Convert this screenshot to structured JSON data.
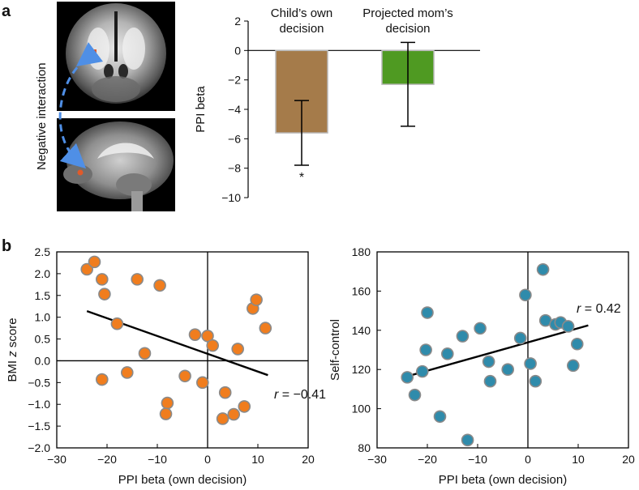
{
  "panels": {
    "a": "a",
    "b": "b"
  },
  "brain": {
    "arrow_label": "Negative interaction",
    "arrow_color": "#4f8fe6",
    "roi_color": "#e05a2a"
  },
  "chart_data": [
    {
      "id": "bar",
      "type": "bar",
      "categories": [
        "Child’s own decision",
        "Projected mom’s decision"
      ],
      "category_lines": [
        [
          "Child’s own",
          "decision"
        ],
        [
          "Projected mom’s",
          "decision"
        ]
      ],
      "values": [
        -5.6,
        -2.3
      ],
      "errors": [
        2.2,
        2.85
      ],
      "colors": [
        "#a57b4a",
        "#4f9a22"
      ],
      "significance": [
        "*",
        ""
      ],
      "ylabel": "PPI beta",
      "xlabel": "",
      "ylim": [
        -10,
        2
      ],
      "yticks": [
        2,
        0,
        -2,
        -4,
        -6,
        -8,
        -10
      ],
      "ytick_labels": [
        "2",
        "0",
        "−2",
        "−4",
        "−6",
        "−8",
        "−10"
      ]
    },
    {
      "id": "bmi",
      "type": "scatter",
      "xlabel": "PPI beta (own decision)",
      "ylabel_parts": [
        "BMI ",
        "z",
        " score"
      ],
      "xlim": [
        -30,
        20
      ],
      "ylim": [
        -2,
        2.5
      ],
      "xticks": [
        -30,
        -20,
        -10,
        0,
        10,
        20
      ],
      "xtick_labels": [
        "−30",
        "−20",
        "−10",
        "0",
        "10",
        "20"
      ],
      "yticks": [
        2.5,
        2.0,
        1.5,
        1.0,
        0.5,
        0.0,
        -0.5,
        -1.0,
        -1.5,
        -2.0
      ],
      "ytick_labels": [
        "2.5",
        "2.0",
        "1.5",
        "1.0",
        "0.5",
        "0.0",
        "−0.5",
        "−1.0",
        "−1.5",
        "−2.0"
      ],
      "point_color": "#f07d1e",
      "point_edge": "#8a8a8a",
      "points": [
        [
          -24,
          2.1
        ],
        [
          -22.5,
          2.27
        ],
        [
          -21,
          1.87
        ],
        [
          -20.5,
          1.53
        ],
        [
          -18,
          0.85
        ],
        [
          -14,
          1.87
        ],
        [
          -9.5,
          1.73
        ],
        [
          -12.5,
          0.17
        ],
        [
          -21,
          -0.43
        ],
        [
          -16,
          -0.27
        ],
        [
          -8,
          -0.97
        ],
        [
          -8.3,
          -1.22
        ],
        [
          -4.5,
          -0.35
        ],
        [
          -2.5,
          0.6
        ],
        [
          0,
          0.57
        ],
        [
          1,
          0.35
        ],
        [
          -1,
          -0.5
        ],
        [
          6,
          0.27
        ],
        [
          9,
          1.2
        ],
        [
          9.7,
          1.4
        ],
        [
          11.5,
          0.75
        ],
        [
          3.5,
          -0.73
        ],
        [
          3,
          -1.33
        ],
        [
          5.2,
          -1.23
        ],
        [
          7.3,
          -1.05
        ]
      ],
      "fit_line": [
        [
          -24,
          1.14
        ],
        [
          12,
          -0.33
        ]
      ],
      "annotation": {
        "r_text": "r",
        "value_text": " = −0.41"
      }
    },
    {
      "id": "self",
      "type": "scatter",
      "xlabel": "PPI beta (own decision)",
      "ylabel": "Self-control",
      "xlim": [
        -30,
        20
      ],
      "ylim": [
        80,
        180
      ],
      "xticks": [
        -30,
        -20,
        -10,
        0,
        10,
        20
      ],
      "xtick_labels": [
        "−30",
        "−20",
        "−10",
        "0",
        "10",
        "20"
      ],
      "yticks": [
        180,
        160,
        140,
        120,
        100,
        80
      ],
      "ytick_labels": [
        "180",
        "160",
        "140",
        "120",
        "100",
        "80"
      ],
      "point_color": "#2f8bab",
      "point_edge": "#8a8a8a",
      "points": [
        [
          -24,
          116
        ],
        [
          -22.5,
          107
        ],
        [
          -21,
          119
        ],
        [
          -20.3,
          130
        ],
        [
          -20,
          149
        ],
        [
          -17.5,
          96
        ],
        [
          -16,
          128
        ],
        [
          -13,
          137
        ],
        [
          -12,
          84
        ],
        [
          -9.5,
          141
        ],
        [
          -7.8,
          124
        ],
        [
          -7.5,
          114
        ],
        [
          -4,
          120
        ],
        [
          -1.5,
          136
        ],
        [
          -0.5,
          158
        ],
        [
          0.5,
          123
        ],
        [
          1.5,
          114
        ],
        [
          3,
          171
        ],
        [
          3.5,
          145
        ],
        [
          5.5,
          143
        ],
        [
          6.5,
          144
        ],
        [
          8,
          142
        ],
        [
          9,
          122
        ],
        [
          9.8,
          133
        ]
      ],
      "fit_line": [
        [
          -24,
          116.5
        ],
        [
          12,
          142.5
        ]
      ],
      "annotation": {
        "r_text": "r",
        "value_text": " = 0.42"
      }
    }
  ]
}
